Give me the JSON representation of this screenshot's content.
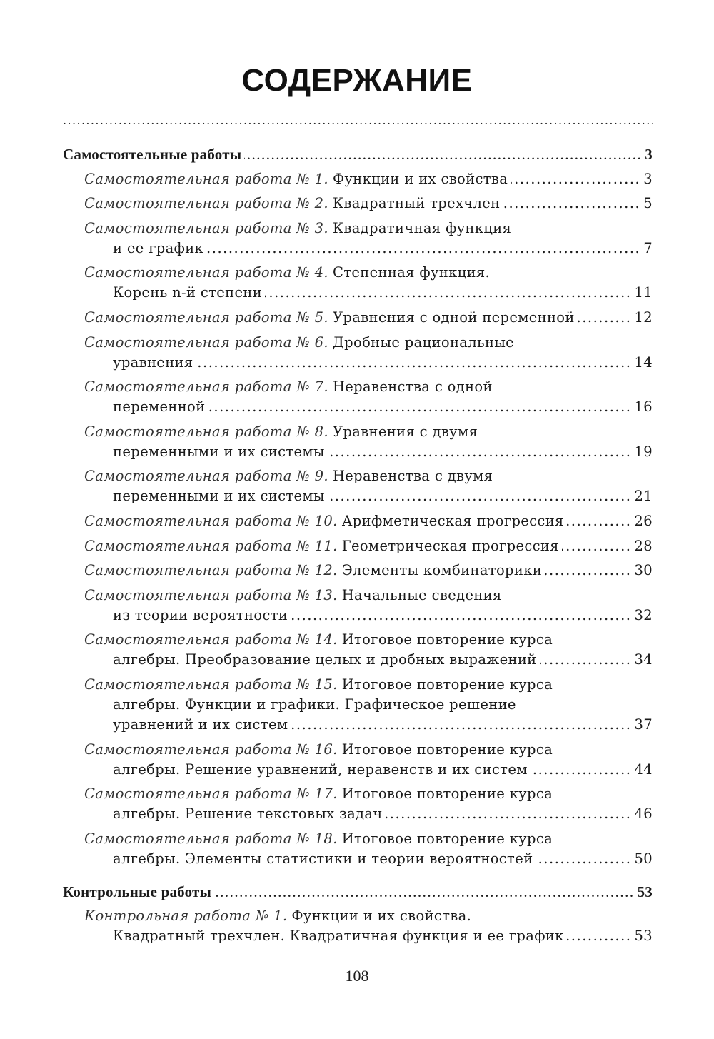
{
  "title": "СОДЕРЖАНИЕ",
  "sections": [
    {
      "heading": "Самостоятельные работы",
      "page": "3",
      "entries": [
        {
          "prefix": "Самостоятельная работа № 1.",
          "lines": [
            "Функции и их свойства"
          ],
          "page": "3"
        },
        {
          "prefix": "Самостоятельная работа № 2.",
          "lines": [
            "Квадратный трехчлен"
          ],
          "page": "5"
        },
        {
          "prefix": "Самостоятельная работа № 3.",
          "lines": [
            "Квадратичная функция",
            "и ее график"
          ],
          "page": "7"
        },
        {
          "prefix": "Самостоятельная работа № 4.",
          "lines": [
            "Степенная функция.",
            "Корень n-й степени"
          ],
          "page": "11"
        },
        {
          "prefix": "Самостоятельная работа № 5.",
          "lines": [
            "Уравнения с одной переменной"
          ],
          "page": "12"
        },
        {
          "prefix": "Самостоятельная работа № 6.",
          "lines": [
            "Дробные рациональные",
            "уравнения"
          ],
          "page": "14"
        },
        {
          "prefix": "Самостоятельная работа № 7.",
          "lines": [
            "Неравенства с одной",
            "переменной"
          ],
          "page": "16"
        },
        {
          "prefix": "Самостоятельная работа № 8.",
          "lines": [
            "Уравнения с двумя",
            "переменными и их системы"
          ],
          "page": "19"
        },
        {
          "prefix": "Самостоятельная работа № 9.",
          "lines": [
            "Неравенства с двумя",
            "переменными и их системы"
          ],
          "page": "21"
        },
        {
          "prefix": "Самостоятельная работа № 10.",
          "lines": [
            "Арифметическая прогрессия"
          ],
          "page": "26"
        },
        {
          "prefix": "Самостоятельная работа № 11.",
          "lines": [
            "Геометрическая прогрессия"
          ],
          "page": "28"
        },
        {
          "prefix": "Самостоятельная работа № 12.",
          "lines": [
            "Элементы комбинаторики"
          ],
          "page": "30"
        },
        {
          "prefix": "Самостоятельная работа № 13.",
          "lines": [
            "Начальные сведения",
            "из теории вероятности"
          ],
          "page": "32"
        },
        {
          "prefix": "Самостоятельная работа № 14.",
          "lines": [
            "Итоговое повторение курса",
            "алгебры. Преобразование целых и дробных выражений"
          ],
          "page": "34"
        },
        {
          "prefix": "Самостоятельная работа № 15.",
          "lines": [
            "Итоговое повторение курса",
            "алгебры. Функции и графики. Графическое решение",
            "уравнений и их систем"
          ],
          "page": "37"
        },
        {
          "prefix": "Самостоятельная работа № 16.",
          "lines": [
            "Итоговое повторение курса",
            "алгебры. Решение уравнений, неравенств и их систем"
          ],
          "page": "44"
        },
        {
          "prefix": "Самостоятельная работа № 17.",
          "lines": [
            "Итоговое повторение курса",
            "алгебры. Решение текстовых задач"
          ],
          "page": "46"
        },
        {
          "prefix": "Самостоятельная работа № 18.",
          "lines": [
            "Итоговое повторение курса",
            "алгебры. Элементы статистики и теории вероятностей"
          ],
          "page": "50"
        }
      ]
    },
    {
      "heading": "Контрольные работы",
      "page": "53",
      "entries": [
        {
          "prefix": "Контрольная работа № 1.",
          "lines": [
            "Функции и их свойства.",
            "Квадратный трехчлен. Квадратичная функция и ее график"
          ],
          "page": "53"
        }
      ]
    }
  ],
  "page_number": "108"
}
